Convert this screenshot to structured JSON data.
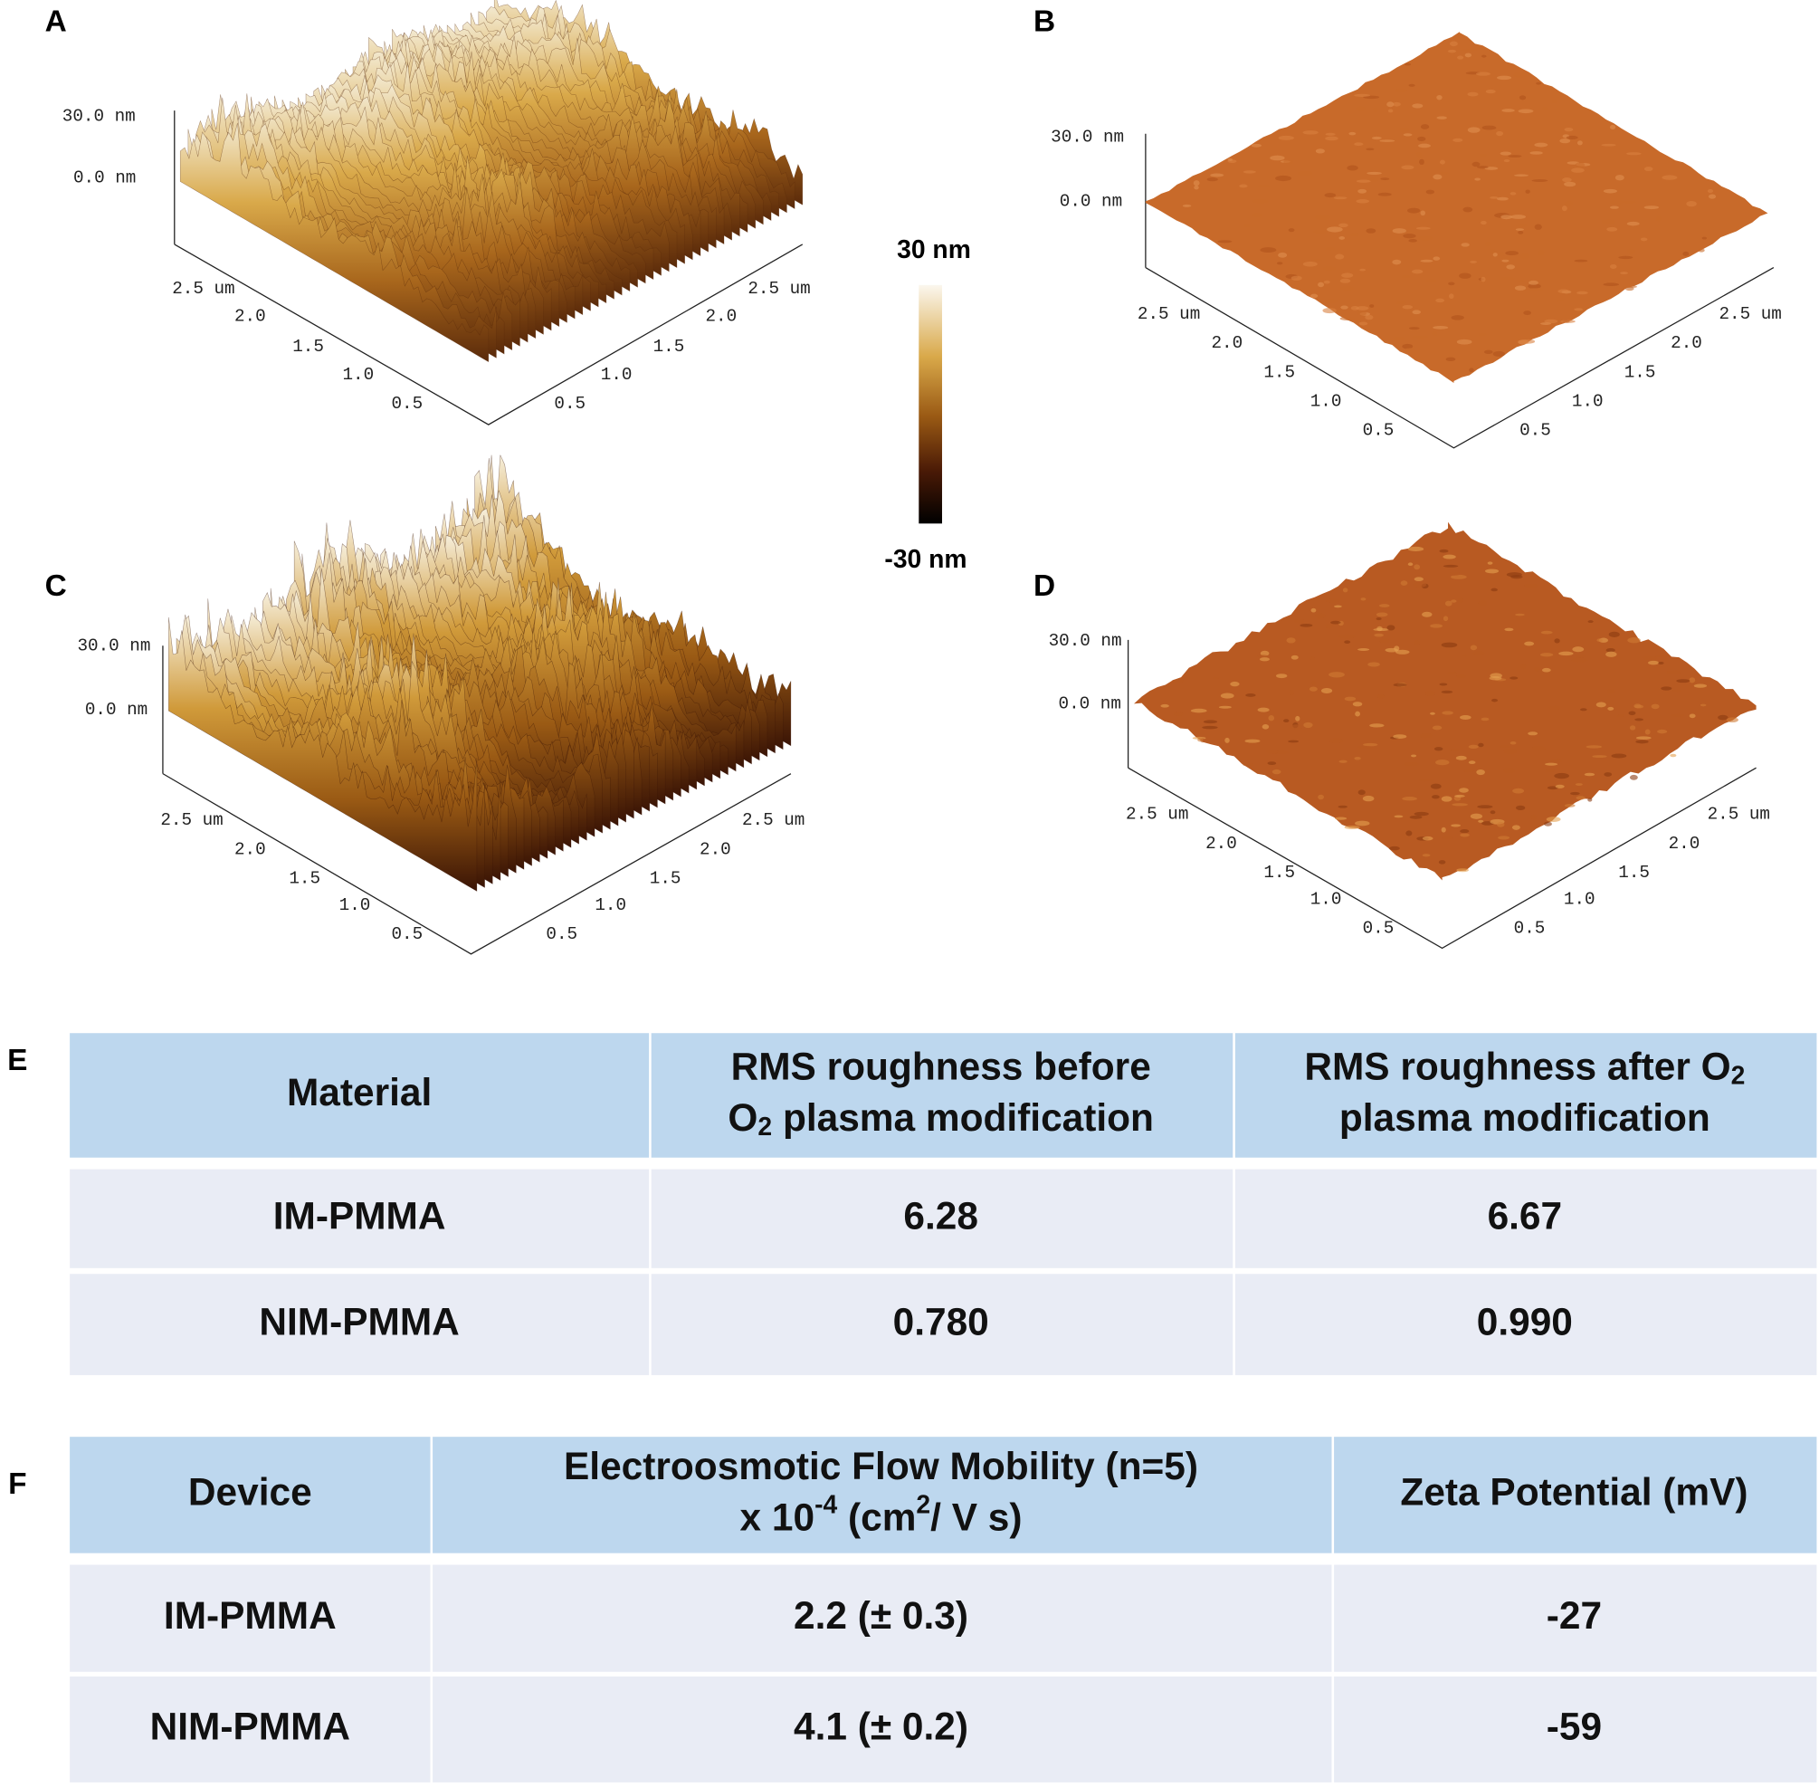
{
  "panels": [
    {
      "label": "A",
      "z_labels": [
        "30.0 nm",
        "0.0 nm"
      ],
      "left_ticks": [
        "2.5 um",
        "2.0",
        "1.5",
        "1.0",
        "0.5"
      ],
      "right_ticks": [
        "0.5",
        "1.0",
        "1.5",
        "2.0",
        "2.5 um"
      ]
    },
    {
      "label": "B",
      "z_labels": [
        "30.0 nm",
        "0.0 nm"
      ],
      "left_ticks": [
        "2.5 um",
        "2.0",
        "1.5",
        "1.0",
        "0.5"
      ],
      "right_ticks": [
        "0.5",
        "1.0",
        "1.5",
        "2.0",
        "2.5 um"
      ]
    },
    {
      "label": "C",
      "z_labels": [
        "30.0 nm",
        "0.0 nm"
      ],
      "left_ticks": [
        "2.5 um",
        "2.0",
        "1.5",
        "1.0",
        "0.5"
      ],
      "right_ticks": [
        "0.5",
        "1.0",
        "1.5",
        "2.0",
        "2.5 um"
      ]
    },
    {
      "label": "D",
      "z_labels": [
        "30.0 nm",
        "0.0 nm"
      ],
      "left_ticks": [
        "2.5 um",
        "2.0",
        "1.5",
        "1.0",
        "0.5"
      ],
      "right_ticks": [
        "0.5",
        "1.0",
        "1.5",
        "2.0",
        "2.5 um"
      ]
    }
  ],
  "colorbar": {
    "max_label": "30 nm",
    "min_label": "-30 nm"
  },
  "table_e": {
    "label": "E",
    "header": [
      [
        [
          {
            "text": "Material"
          }
        ]
      ],
      [
        [
          {
            "text": "RMS roughness before"
          }
        ],
        [
          {
            "text": "O"
          },
          {
            "sub": "2"
          },
          {
            "text": " plasma modification"
          }
        ]
      ],
      [
        [
          {
            "text": "RMS roughness after O"
          },
          {
            "sub": "2"
          }
        ],
        [
          {
            "text": "plasma modification"
          }
        ]
      ]
    ],
    "rows": [
      [
        "IM-PMMA",
        "6.28",
        "6.67"
      ],
      [
        "NIM-PMMA",
        "0.780",
        "0.990"
      ]
    ]
  },
  "table_f": {
    "label": "F",
    "header": [
      [
        [
          {
            "text": "Device"
          }
        ]
      ],
      [
        [
          {
            "text": "Electroosmotic Flow Mobility (n=5)"
          }
        ],
        [
          {
            "text": "x 10"
          },
          {
            "sup": "-4"
          },
          {
            "text": " (cm"
          },
          {
            "sup": "2"
          },
          {
            "text": "/ V s)"
          }
        ]
      ],
      [
        [
          {
            "text": "Zeta Potential (mV)"
          }
        ]
      ]
    ],
    "rows": [
      [
        "IM-PMMA",
        "2.2 (± 0.3)",
        "-27"
      ],
      [
        "NIM-PMMA",
        "4.1 (± 0.2)",
        "-59"
      ]
    ]
  }
}
